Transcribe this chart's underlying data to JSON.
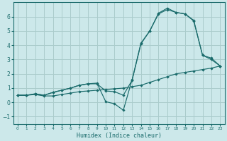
{
  "title": "",
  "xlabel": "Humidex (Indice chaleur)",
  "bg_color": "#cce8ea",
  "grid_color": "#aacccc",
  "line_color": "#1a6b6b",
  "xlim": [
    -0.5,
    23.5
  ],
  "ylim": [
    -1.5,
    7.0
  ],
  "yticks": [
    -1,
    0,
    1,
    2,
    3,
    4,
    5,
    6
  ],
  "xticks": [
    0,
    1,
    2,
    3,
    4,
    5,
    6,
    7,
    8,
    9,
    10,
    11,
    12,
    13,
    14,
    15,
    16,
    17,
    18,
    19,
    20,
    21,
    22,
    23
  ],
  "line1_x": [
    0,
    1,
    2,
    3,
    4,
    5,
    6,
    7,
    8,
    9,
    10,
    11,
    12,
    13,
    14,
    15,
    16,
    17,
    18,
    19,
    20,
    21,
    22,
    23
  ],
  "line1_y": [
    0.5,
    0.5,
    0.55,
    0.45,
    0.45,
    0.55,
    0.65,
    0.75,
    0.8,
    0.85,
    0.9,
    0.95,
    1.0,
    1.1,
    1.2,
    1.4,
    1.6,
    1.8,
    2.0,
    2.1,
    2.2,
    2.3,
    2.4,
    2.55
  ],
  "line2_x": [
    0,
    1,
    2,
    3,
    4,
    5,
    6,
    7,
    8,
    9,
    10,
    11,
    12,
    13,
    14,
    15,
    16,
    17,
    18,
    19,
    20,
    21,
    22,
    23
  ],
  "line2_y": [
    0.5,
    0.5,
    0.6,
    0.5,
    0.7,
    0.85,
    1.0,
    1.2,
    1.3,
    1.3,
    0.8,
    0.75,
    0.5,
    1.55,
    4.1,
    5.0,
    6.2,
    6.5,
    6.3,
    6.2,
    5.75,
    3.3,
    3.1,
    2.55
  ],
  "line3_x": [
    0,
    1,
    2,
    3,
    4,
    5,
    6,
    7,
    8,
    9,
    10,
    11,
    12,
    13,
    14,
    15,
    16,
    17,
    18,
    19,
    20,
    21,
    22,
    23
  ],
  "line3_y": [
    0.5,
    0.5,
    0.6,
    0.5,
    0.7,
    0.85,
    1.0,
    1.2,
    1.3,
    1.35,
    0.05,
    -0.1,
    -0.55,
    1.6,
    4.15,
    5.0,
    6.25,
    6.6,
    6.3,
    6.2,
    5.7,
    3.3,
    3.0,
    2.55
  ]
}
